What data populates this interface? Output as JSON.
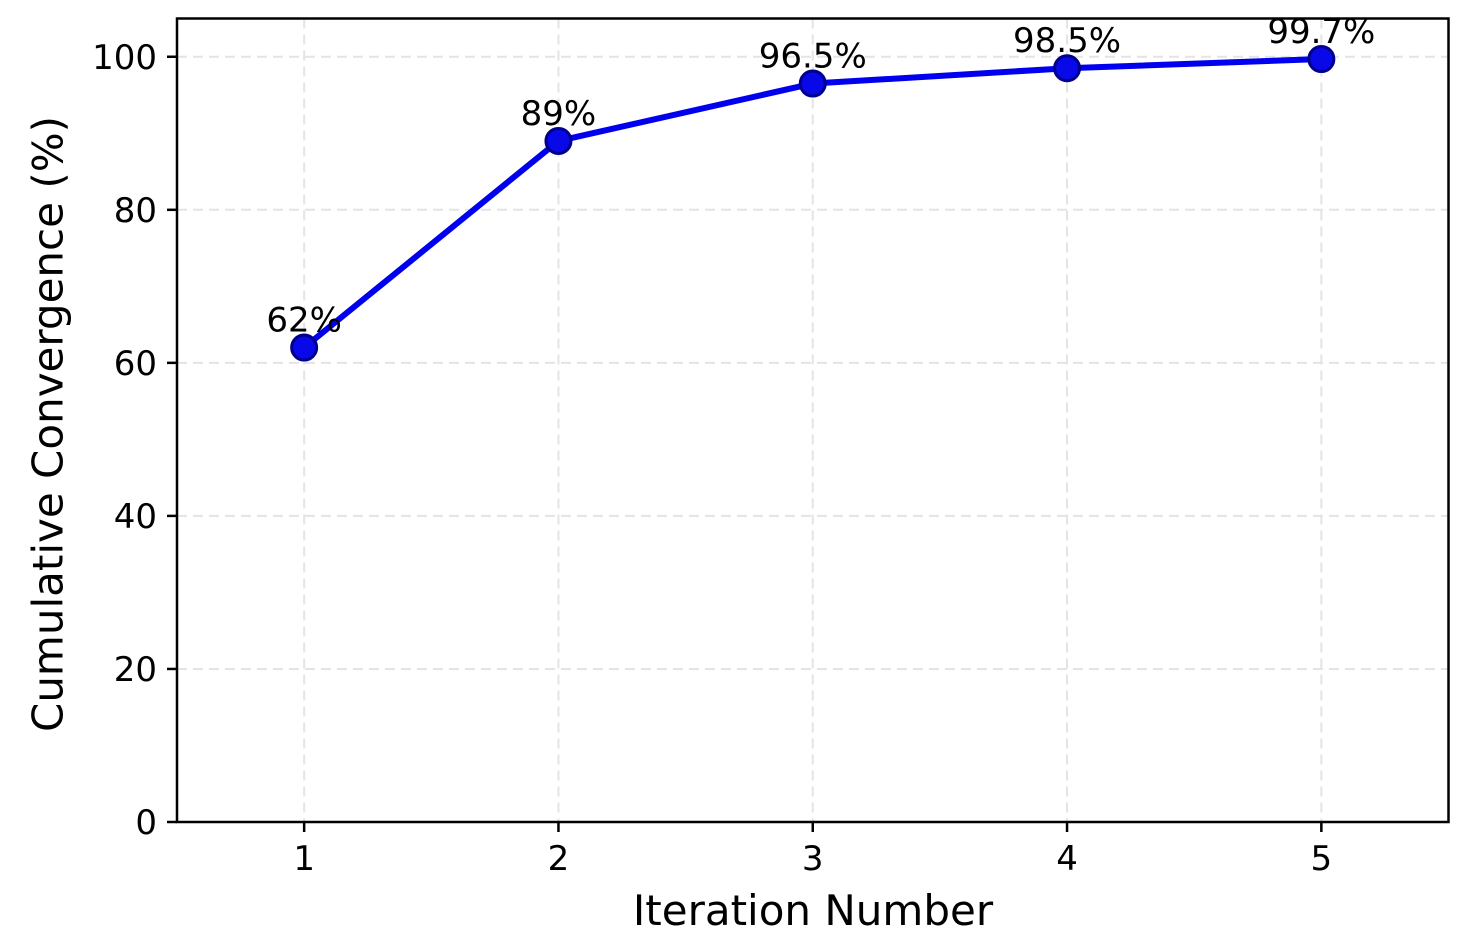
{
  "chart_data": {
    "type": "line",
    "title": "",
    "xlabel": "Iteration Number",
    "ylabel": "Cumulative Convergence (%)",
    "x": [
      1,
      2,
      3,
      4,
      5
    ],
    "series": [
      {
        "name": "Cumulative Convergence",
        "values": [
          62,
          89,
          96.5,
          98.5,
          99.7
        ],
        "point_labels": [
          "62%",
          "89%",
          "96.5%",
          "98.5%",
          "99.7%"
        ]
      }
    ],
    "xticks": [
      1,
      2,
      3,
      4,
      5
    ],
    "yticks": [
      0,
      20,
      40,
      60,
      80,
      100
    ],
    "xlim": [
      0.5,
      5.5
    ],
    "ylim": [
      0,
      105
    ],
    "grid": "dashed",
    "legend_position": "none",
    "colors": {
      "line": "#0000EE",
      "marker_fill": "#0808E8",
      "marker_edge": "#00008B",
      "grid": "#e4e4e4",
      "axis": "#000000",
      "text": "#000000"
    }
  }
}
